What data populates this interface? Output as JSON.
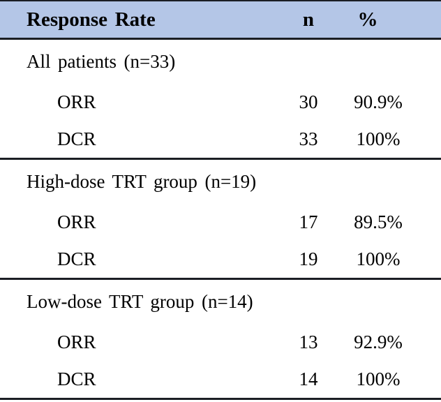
{
  "table": {
    "columns": [
      "Response Rate",
      "n",
      "%"
    ],
    "sections": [
      {
        "group_label": "All patients (n=33)",
        "rows": [
          {
            "label": "ORR",
            "n": "30",
            "pct": "90.9%"
          },
          {
            "label": "DCR",
            "n": "33",
            "pct": "100%"
          }
        ]
      },
      {
        "group_label": "High-dose TRT group (n=19)",
        "rows": [
          {
            "label": "ORR",
            "n": "17",
            "pct": "89.5%"
          },
          {
            "label": "DCR",
            "n": "19",
            "pct": "100%"
          }
        ]
      },
      {
        "group_label": "Low-dose TRT group (n=14)",
        "rows": [
          {
            "label": "ORR",
            "n": "13",
            "pct": "92.9%"
          },
          {
            "label": "DCR",
            "n": "14",
            "pct": "100%"
          }
        ]
      }
    ],
    "colors": {
      "header_bg": "#b4c6e7",
      "border": "#1b1e24",
      "text": "#000000",
      "page_bg": "#ffffff"
    }
  },
  "chart_data": {
    "type": "table",
    "title": "Response Rate",
    "columns": [
      "Response Rate",
      "n",
      "%"
    ],
    "rows": [
      [
        "All patients (n=33)",
        "",
        ""
      ],
      [
        "ORR",
        "30",
        "90.9%"
      ],
      [
        "DCR",
        "33",
        "100%"
      ],
      [
        "High-dose TRT group (n=19)",
        "",
        ""
      ],
      [
        "ORR",
        "17",
        "89.5%"
      ],
      [
        "DCR",
        "19",
        "100%"
      ],
      [
        "Low-dose TRT group (n=14)",
        "",
        ""
      ],
      [
        "ORR",
        "13",
        "92.9%"
      ],
      [
        "DCR",
        "14",
        "100%"
      ]
    ],
    "layout": {
      "header_background": "#b4c6e7",
      "rules": "horizontal-only",
      "n_column_align": "center",
      "pct_column_align": "center"
    }
  }
}
